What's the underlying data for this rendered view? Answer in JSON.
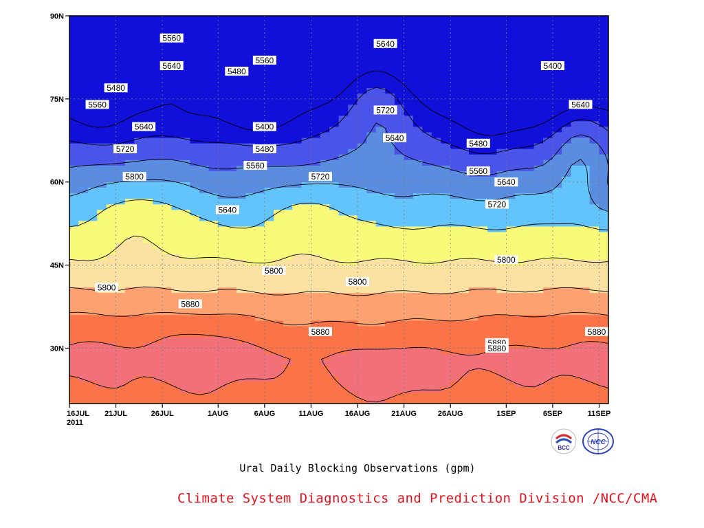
{
  "chart_data": {
    "type": "contour",
    "title": "Ural Daily Blocking Observations (gpm)",
    "y_axis": {
      "range": [
        20,
        90
      ],
      "ticks": [
        "90N",
        "75N",
        "60N",
        "45N",
        "30N"
      ]
    },
    "x_axis": {
      "range": [
        "2011-07-16",
        "2011-09-12"
      ],
      "ticks": [
        "16JUL",
        "21JUL",
        "26JUL",
        "1AUG",
        "6AUG",
        "11AUG",
        "16AUG",
        "21AUG",
        "26AUG",
        "1SEP",
        "6SEP",
        "11SEP"
      ],
      "year_label": "2011"
    },
    "contour_interval": 80,
    "fill_levels": [
      {
        "value": 5320,
        "color": "#1010d8"
      },
      {
        "value": 5400,
        "color": "#4a54e8"
      },
      {
        "value": 5480,
        "color": "#5a8ce0"
      },
      {
        "value": 5560,
        "color": "#62c4fa"
      },
      {
        "value": 5640,
        "color": "#fafa7a"
      },
      {
        "value": 5720,
        "color": "#fce2a2"
      },
      {
        "value": 5800,
        "color": "#fca270"
      },
      {
        "value": 5880,
        "color": "#fa7448"
      },
      {
        "value": 5960,
        "color": "#f2707a"
      },
      {
        "value": 6040,
        "color": "#ef3648"
      }
    ],
    "contour_labels": [
      {
        "text": "5560",
        "date": "2011-07-27",
        "lat": 86
      },
      {
        "text": "5640",
        "date": "2011-07-27",
        "lat": 81
      },
      {
        "text": "5480",
        "date": "2011-07-21",
        "lat": 77
      },
      {
        "text": "5560",
        "date": "2011-07-19",
        "lat": 74
      },
      {
        "text": "5640",
        "date": "2011-07-24",
        "lat": 70
      },
      {
        "text": "5720",
        "date": "2011-07-22",
        "lat": 66
      },
      {
        "text": "5800",
        "date": "2011-07-23",
        "lat": 61
      },
      {
        "text": "5560",
        "date": "2011-08-06",
        "lat": 82
      },
      {
        "text": "5480",
        "date": "2011-08-03",
        "lat": 80
      },
      {
        "text": "5400",
        "date": "2011-08-06",
        "lat": 70
      },
      {
        "text": "5480",
        "date": "2011-08-06",
        "lat": 66
      },
      {
        "text": "5560",
        "date": "2011-08-05",
        "lat": 63
      },
      {
        "text": "5640",
        "date": "2011-08-02",
        "lat": 55
      },
      {
        "text": "5720",
        "date": "2011-08-12",
        "lat": 61
      },
      {
        "text": "5640",
        "date": "2011-08-19",
        "lat": 85
      },
      {
        "text": "5720",
        "date": "2011-08-19",
        "lat": 73
      },
      {
        "text": "5640",
        "date": "2011-08-20",
        "lat": 68
      },
      {
        "text": "5800",
        "date": "2011-08-07",
        "lat": 44
      },
      {
        "text": "5800",
        "date": "2011-08-16",
        "lat": 42
      },
      {
        "text": "5800",
        "date": "2011-07-20",
        "lat": 41
      },
      {
        "text": "5880",
        "date": "2011-07-29",
        "lat": 38
      },
      {
        "text": "5880",
        "date": "2011-08-12",
        "lat": 33
      },
      {
        "text": "5400",
        "date": "2011-09-06",
        "lat": 81
      },
      {
        "text": "5640",
        "date": "2011-09-09",
        "lat": 74
      },
      {
        "text": "5480",
        "date": "2011-08-29",
        "lat": 67
      },
      {
        "text": "5560",
        "date": "2011-08-29",
        "lat": 62
      },
      {
        "text": "5640",
        "date": "2011-09-01",
        "lat": 60
      },
      {
        "text": "5720",
        "date": "2011-08-31",
        "lat": 56
      },
      {
        "text": "5800",
        "date": "2011-09-01",
        "lat": 46
      },
      {
        "text": "5880",
        "date": "2011-08-31",
        "lat": 31
      },
      {
        "text": "5880",
        "date": "2011-08-31",
        "lat": 30
      },
      {
        "text": "5880",
        "date": "2011-09-12",
        "lat": 33
      }
    ]
  },
  "caption": "Ural Daily Blocking Observations (gpm)",
  "credit": "Climate System Diagnostics and Prediction Division /NCC/CMA",
  "logos": [
    {
      "name": "BCC",
      "text": "BCC",
      "color": "#d62a2a"
    },
    {
      "name": "NCC",
      "text": "NCC",
      "color": "#2a3fb8"
    }
  ]
}
